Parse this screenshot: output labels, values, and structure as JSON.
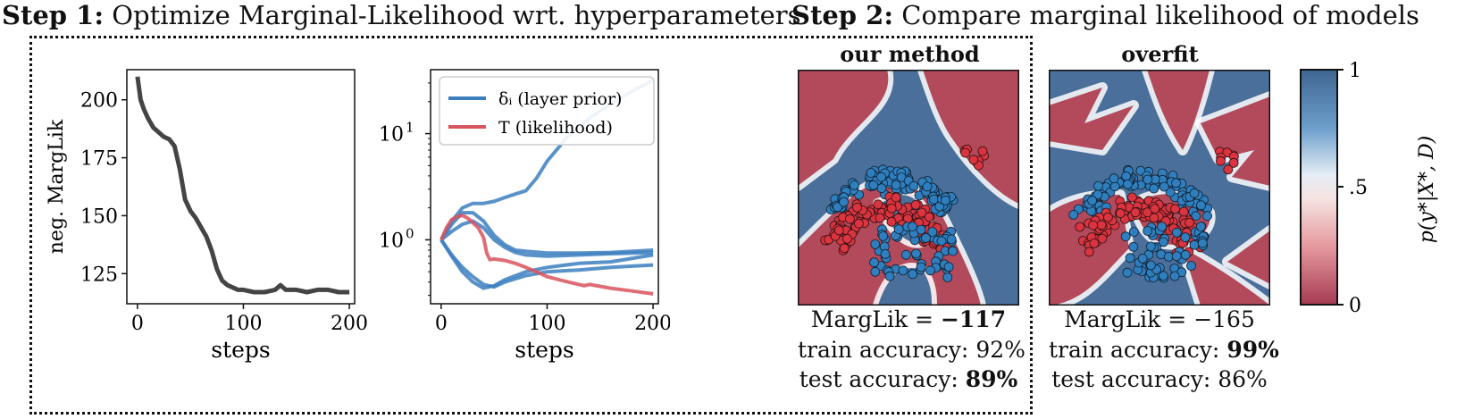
{
  "step1": {
    "prefix": "Step 1:",
    "text": "Optimize Marginal-Likelihood wrt. hyperparameters"
  },
  "step2": {
    "prefix": "Step 2:",
    "text": "Compare marginal likelihood of models"
  },
  "chart_data": [
    {
      "type": "line",
      "xlabel": "steps",
      "ylabel": "neg. MargLik",
      "xlim": [
        -10,
        205
      ],
      "ylim": [
        112,
        213
      ],
      "xticks": [
        "0",
        "100",
        "200"
      ],
      "yticks": [
        "125",
        "150",
        "175",
        "200"
      ],
      "series": [
        {
          "color": "#444444",
          "x": [
            0,
            3,
            6,
            10,
            15,
            20,
            25,
            30,
            35,
            40,
            45,
            50,
            55,
            60,
            65,
            70,
            75,
            80,
            85,
            90,
            95,
            100,
            110,
            120,
            130,
            135,
            140,
            150,
            160,
            170,
            180,
            190,
            200
          ],
          "y": [
            210,
            200,
            196,
            192,
            188,
            186,
            184,
            183,
            180,
            170,
            157,
            152,
            149,
            145,
            141,
            135,
            127,
            122,
            120,
            119,
            118,
            118,
            117,
            117,
            118,
            120,
            118,
            118,
            117,
            118,
            118,
            117,
            117
          ]
        }
      ]
    },
    {
      "type": "line",
      "xlabel": "steps",
      "yscale": "log",
      "xlim": [
        -10,
        205
      ],
      "ylim": [
        0.25,
        40
      ],
      "xticks": [
        "0",
        "100",
        "200"
      ],
      "yticks": [
        "10^0",
        "10^1"
      ],
      "legend": {
        "position": "top-left",
        "entries": [
          {
            "label": "δ_i (layer prior)",
            "color": "#3c7fbf"
          },
          {
            "label": "T (likelihood)",
            "color": "#d9545e"
          }
        ]
      },
      "series": [
        {
          "name": "δ_i (layer prior)",
          "color": "#3c7fbf",
          "x": [
            0,
            10,
            20,
            30,
            40,
            50,
            60,
            70,
            80,
            90,
            100,
            120,
            140,
            160,
            180,
            200
          ],
          "y": [
            1.0,
            1.5,
            2.0,
            2.2,
            2.2,
            2.3,
            2.5,
            2.7,
            2.9,
            3.8,
            5.5,
            9.5,
            14,
            19,
            25,
            32
          ]
        },
        {
          "color": "#3c7fbf",
          "x": [
            0,
            10,
            20,
            30,
            40,
            50,
            60,
            70,
            80,
            100,
            130,
            160,
            200
          ],
          "y": [
            1.0,
            1.4,
            1.8,
            1.8,
            1.5,
            1.1,
            0.9,
            0.8,
            0.78,
            0.75,
            0.75,
            0.76,
            0.8
          ]
        },
        {
          "color": "#3c7fbf",
          "x": [
            0,
            10,
            20,
            30,
            40,
            50,
            60,
            70,
            80,
            100,
            130,
            160,
            200
          ],
          "y": [
            1.0,
            1.2,
            1.4,
            1.5,
            1.3,
            1.0,
            0.85,
            0.76,
            0.72,
            0.7,
            0.72,
            0.74,
            0.76
          ]
        },
        {
          "color": "#3c7fbf",
          "x": [
            0,
            10,
            20,
            30,
            40,
            50,
            60,
            80,
            100,
            130,
            160,
            200
          ],
          "y": [
            1.0,
            0.7,
            0.5,
            0.4,
            0.35,
            0.37,
            0.42,
            0.5,
            0.55,
            0.6,
            0.62,
            0.72
          ]
        },
        {
          "color": "#3c7fbf",
          "x": [
            0,
            10,
            20,
            30,
            40,
            50,
            60,
            80,
            100,
            130,
            160,
            200
          ],
          "y": [
            1.0,
            0.72,
            0.55,
            0.45,
            0.38,
            0.36,
            0.4,
            0.46,
            0.5,
            0.52,
            0.55,
            0.58
          ]
        },
        {
          "name": "T (likelihood)",
          "color": "#d9545e",
          "x": [
            0,
            5,
            10,
            15,
            20,
            25,
            30,
            35,
            40,
            43,
            46,
            50,
            60,
            70,
            80,
            90,
            100,
            120,
            135,
            140,
            160,
            180,
            200
          ],
          "y": [
            1.0,
            1.3,
            1.55,
            1.65,
            1.7,
            1.6,
            1.45,
            1.3,
            1.05,
            0.75,
            0.65,
            0.66,
            0.64,
            0.6,
            0.55,
            0.5,
            0.45,
            0.4,
            0.37,
            0.38,
            0.35,
            0.33,
            0.31
          ]
        }
      ]
    }
  ],
  "models": [
    {
      "title": "our method",
      "marglik_label": "MargLik",
      "marglik_eq": "=",
      "marglik_value": "−117",
      "train_label": "train accuracy:",
      "train_value": "92%",
      "test_label": "test accuracy:",
      "test_value": "89%"
    },
    {
      "title": "overfit",
      "marglik_label": "MargLik",
      "marglik_eq": "=",
      "marglik_value": "−165",
      "train_label": "train accuracy:",
      "train_value": "99%",
      "test_label": "test accuracy:",
      "test_value": "86%"
    }
  ],
  "colorbar": {
    "ticks": [
      "1",
      ".5",
      "0"
    ],
    "label": "p(y*|X*, D)",
    "top_color": "#4a6f9a",
    "mid_color": "#f7f7f7",
    "bottom_color": "#b34a5c"
  },
  "colors": {
    "blue": "#4a6f9a",
    "red": "#b34a5c",
    "point_blue": "#2f7fbf",
    "point_red": "#d9343f"
  }
}
